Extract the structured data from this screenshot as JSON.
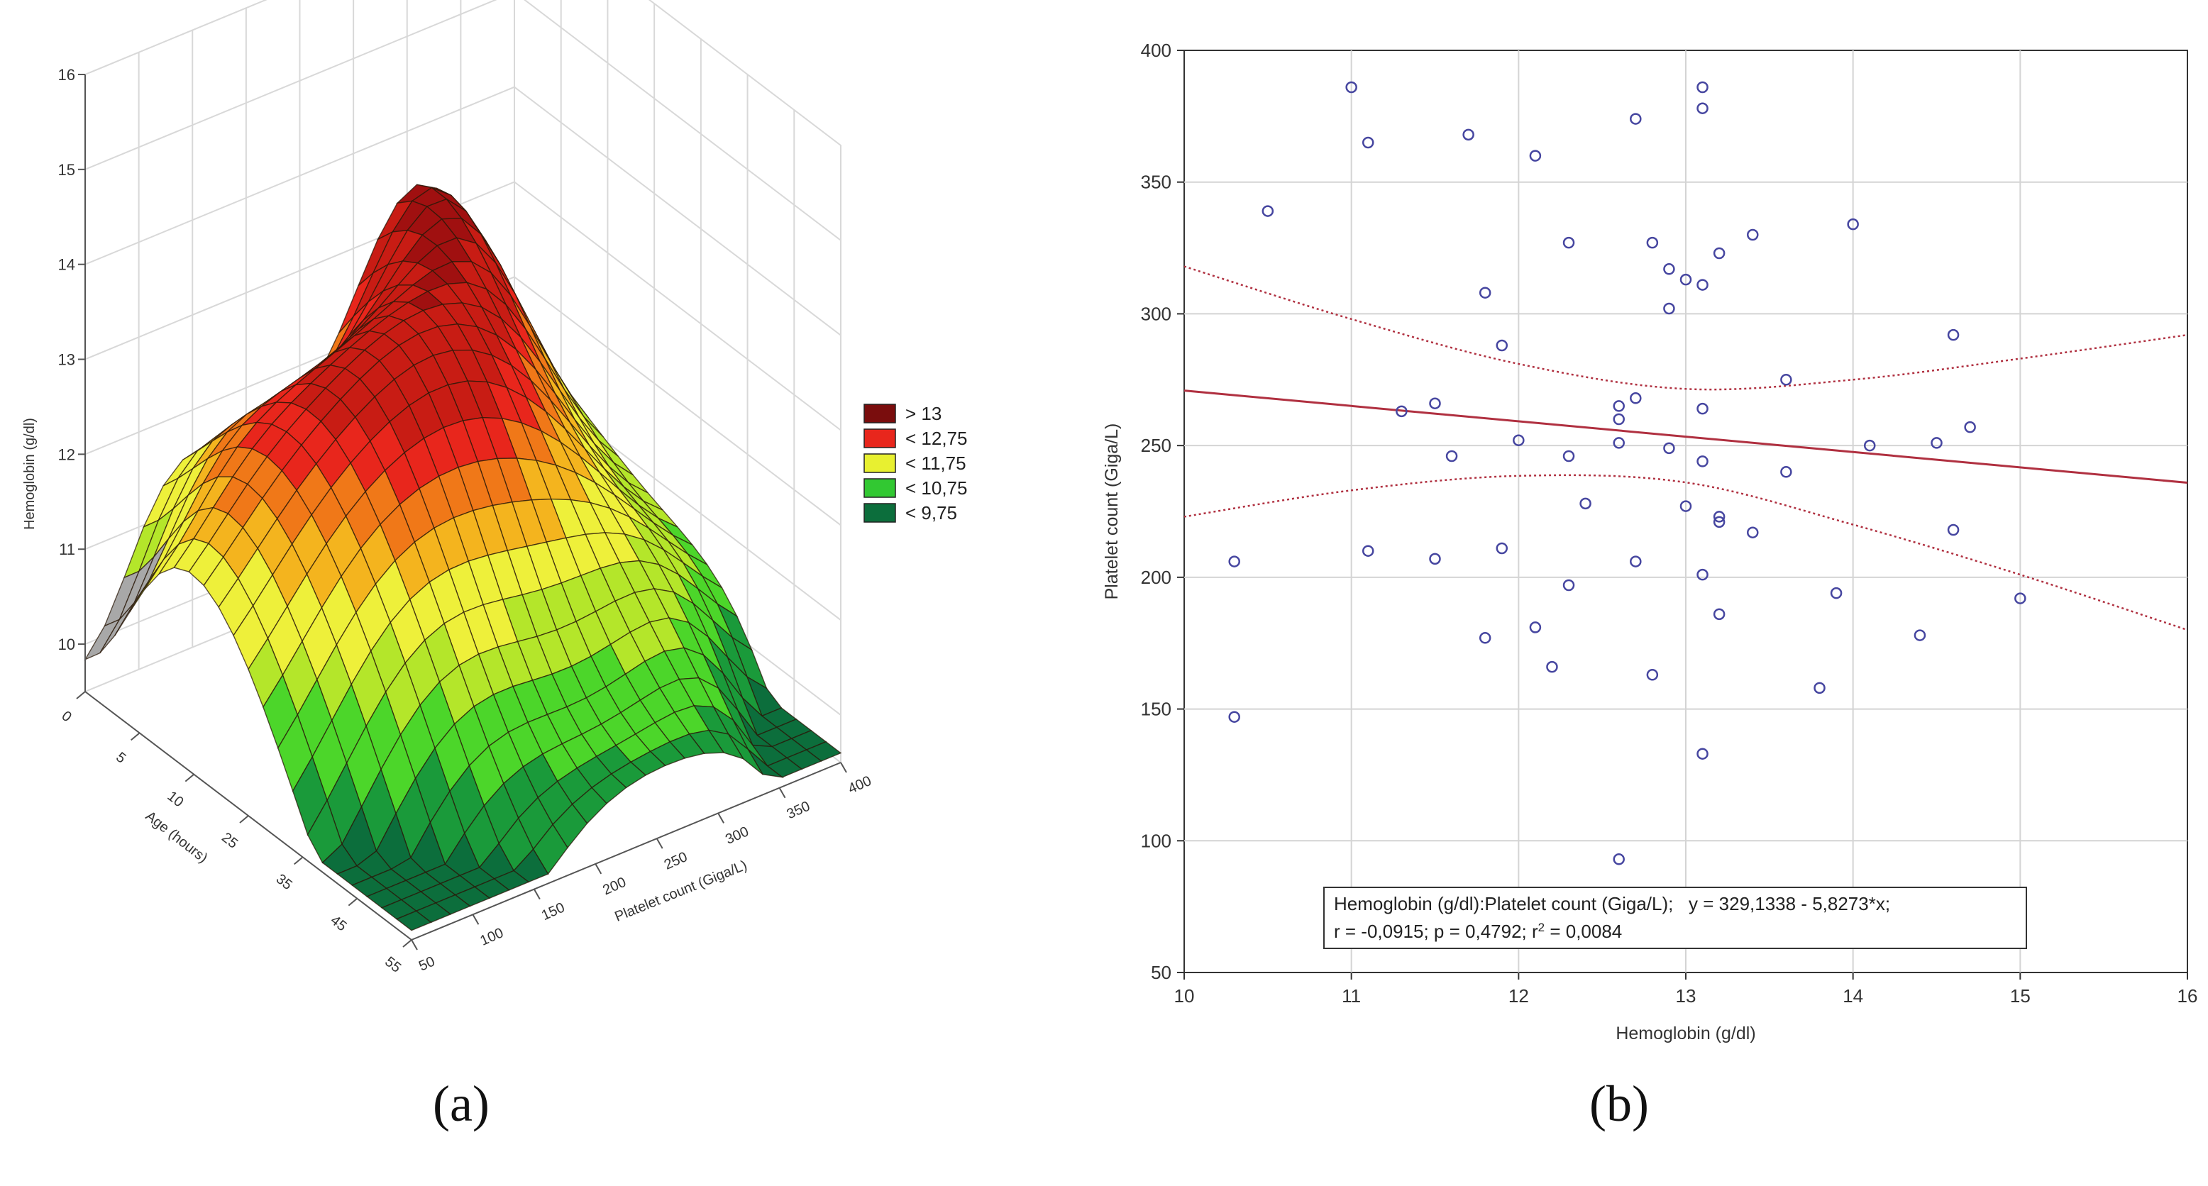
{
  "panels": {
    "a": "(a)",
    "b": "(b)"
  },
  "chart_data": [
    {
      "type": "surface3d",
      "title": "",
      "xlabel": "Platelet count (Giga/L)",
      "ylabel": "Age (hours)",
      "zlabel": "Hemoglobin (g/dl)",
      "x_ticks": [
        "50",
        "100",
        "150",
        "200",
        "250",
        "300",
        "350",
        "400"
      ],
      "y_ticks": [
        "55",
        "45",
        "35",
        "25",
        "10",
        "5",
        "0"
      ],
      "z_ticks": [
        "10",
        "11",
        "12",
        "13",
        "14",
        "15",
        "16"
      ],
      "xlim": [
        50,
        400
      ],
      "ylim": [
        0,
        55
      ],
      "zlim": [
        9.5,
        16
      ],
      "legend": [
        {
          "label": "> 13",
          "color": "#7a0d0d"
        },
        {
          "label": "< 12,75",
          "color": "#e8261c"
        },
        {
          "label": "< 11,75",
          "color": "#e8f030"
        },
        {
          "label": "< 10,75",
          "color": "#32c832"
        },
        {
          "label": "< 9,75",
          "color": "#0c6e3c"
        }
      ],
      "colors": {
        "gray": "#a8a8a8",
        "grid": "#d8d8d8",
        "mesh": "#2a1808",
        "axis": "#555555",
        "text": "#333333"
      }
    },
    {
      "type": "scatter",
      "title": "",
      "xlabel": "Hemoglobin (g/dl)",
      "ylabel": "Platelet count (Giga/L)",
      "xlim": [
        10,
        16
      ],
      "ylim": [
        50,
        400
      ],
      "x_ticks": [
        "10",
        "11",
        "12",
        "13",
        "14",
        "15",
        "16"
      ],
      "y_ticks": [
        "50",
        "100",
        "150",
        "200",
        "250",
        "300",
        "350",
        "400"
      ],
      "points": [
        [
          10.3,
          206
        ],
        [
          10.3,
          147
        ],
        [
          10.5,
          339
        ],
        [
          11.0,
          386
        ],
        [
          11.1,
          365
        ],
        [
          11.1,
          210
        ],
        [
          11.3,
          263
        ],
        [
          11.5,
          266
        ],
        [
          11.5,
          207
        ],
        [
          11.6,
          246
        ],
        [
          11.7,
          368
        ],
        [
          11.8,
          308
        ],
        [
          11.8,
          177
        ],
        [
          11.9,
          288
        ],
        [
          11.9,
          211
        ],
        [
          12.0,
          252
        ],
        [
          12.1,
          360
        ],
        [
          12.1,
          181
        ],
        [
          12.2,
          166
        ],
        [
          12.3,
          327
        ],
        [
          12.3,
          246
        ],
        [
          12.3,
          197
        ],
        [
          12.4,
          228
        ],
        [
          12.6,
          265
        ],
        [
          12.6,
          260
        ],
        [
          12.6,
          251
        ],
        [
          12.6,
          93
        ],
        [
          12.7,
          374
        ],
        [
          12.7,
          268
        ],
        [
          12.7,
          206
        ],
        [
          12.8,
          327
        ],
        [
          12.8,
          163
        ],
        [
          12.9,
          317
        ],
        [
          12.9,
          302
        ],
        [
          12.9,
          249
        ],
        [
          13.0,
          313
        ],
        [
          13.0,
          227
        ],
        [
          13.1,
          386
        ],
        [
          13.1,
          378
        ],
        [
          13.1,
          311
        ],
        [
          13.1,
          264
        ],
        [
          13.1,
          244
        ],
        [
          13.1,
          201
        ],
        [
          13.1,
          133
        ],
        [
          13.2,
          323
        ],
        [
          13.2,
          223
        ],
        [
          13.2,
          221
        ],
        [
          13.2,
          186
        ],
        [
          13.4,
          330
        ],
        [
          13.4,
          217
        ],
        [
          13.6,
          275
        ],
        [
          13.6,
          240
        ],
        [
          13.8,
          158
        ],
        [
          13.9,
          194
        ],
        [
          14.0,
          334
        ],
        [
          14.1,
          250
        ],
        [
          14.4,
          178
        ],
        [
          14.5,
          251
        ],
        [
          14.6,
          292
        ],
        [
          14.6,
          218
        ],
        [
          14.7,
          257
        ],
        [
          15.0,
          192
        ]
      ],
      "regression": {
        "intercept": 329.1338,
        "slope": -5.8273
      },
      "confidence_band": {
        "upper": [
          [
            10,
            318
          ],
          [
            11,
            298
          ],
          [
            12,
            281
          ],
          [
            13,
            271.5
          ],
          [
            14,
            275
          ],
          [
            15,
            283
          ],
          [
            16,
            292
          ]
        ],
        "lower": [
          [
            10,
            223
          ],
          [
            11,
            233
          ],
          [
            12,
            238.5
          ],
          [
            13,
            236
          ],
          [
            14,
            220
          ],
          [
            15,
            201
          ],
          [
            16,
            180
          ]
        ]
      },
      "annotation": {
        "line1": "Hemoglobin (g/dl):Platelet count (Giga/L);   y = 329,1338 - 5,8273*x;",
        "line2_pre": "r = -0,0915; p = 0,4792; r",
        "line2_sup": "2",
        "line2_post": " = 0,0084"
      },
      "colors": {
        "point": "#4646a0",
        "line": "#b03040",
        "band": "#b03040",
        "grid": "#d4d4d4",
        "frame": "#333333",
        "text": "#333333"
      }
    }
  ]
}
